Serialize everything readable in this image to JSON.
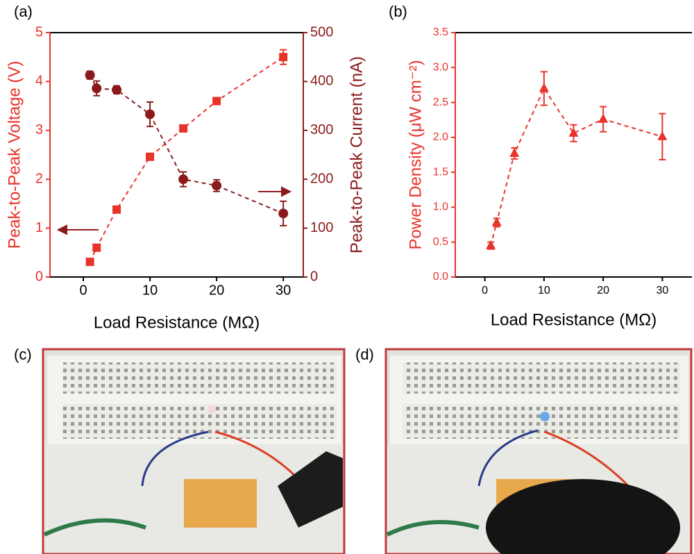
{
  "chart_data": [
    {
      "type": "line",
      "label": "(a)",
      "xlabel": "Load Resistance (MΩ)",
      "ylabel": "Peak-to-Peak Voltage (V)",
      "y2label": "Peak-to-Peak Current (nA)",
      "x": [
        1,
        2,
        5,
        10,
        15,
        20,
        30
      ],
      "xlim": [
        -5,
        33
      ],
      "xticks": [
        0,
        10,
        20,
        30
      ],
      "ylim": [
        0,
        5
      ],
      "yticks": [
        0,
        1,
        2,
        3,
        4,
        5
      ],
      "y2lim": [
        0,
        500
      ],
      "y2ticks": [
        0,
        100,
        200,
        300,
        400,
        500
      ],
      "series": [
        {
          "color": "#e8332a",
          "marker": "square",
          "values": [
            0.31,
            0.6,
            1.38,
            2.46,
            3.04,
            3.6,
            4.5
          ],
          "errors": [
            0.03,
            0.05,
            0.05,
            0.05,
            0.05,
            0.07,
            0.15
          ]
        },
        {
          "color": "#8b1a1a",
          "marker": "circle",
          "axis": "y2",
          "values": [
            413,
            386,
            383,
            333,
            200,
            187,
            130
          ],
          "errors": [
            8,
            15,
            8,
            25,
            15,
            12,
            25
          ]
        }
      ]
    },
    {
      "type": "line",
      "label": "(b)",
      "xlabel": "Load Resistance (MΩ)",
      "ylabel": "Power Density (μW cm⁻²)",
      "x": [
        1,
        2,
        5,
        10,
        15,
        20,
        30
      ],
      "xlim": [
        -5,
        35
      ],
      "xticks": [
        0,
        10,
        20,
        30
      ],
      "ylim": [
        0,
        3.5
      ],
      "yticks": [
        {
          "value": 0,
          "label": "0.0"
        },
        0.5,
        {
          "value": 1,
          "label": "1.0"
        },
        1.5,
        {
          "value": 2,
          "label": "2.0"
        },
        2.5,
        {
          "value": 3,
          "label": "3.0"
        },
        3.5
      ],
      "series": [
        {
          "color": "#e8332a",
          "marker": "triangle",
          "values": [
            0.45,
            0.78,
            1.77,
            2.7,
            2.06,
            2.26,
            2.01
          ],
          "errors": [
            0.05,
            0.06,
            0.08,
            0.24,
            0.12,
            0.18,
            0.33
          ]
        }
      ]
    }
  ],
  "photos": [
    {
      "label": "(c)"
    },
    {
      "label": "(d)"
    }
  ]
}
